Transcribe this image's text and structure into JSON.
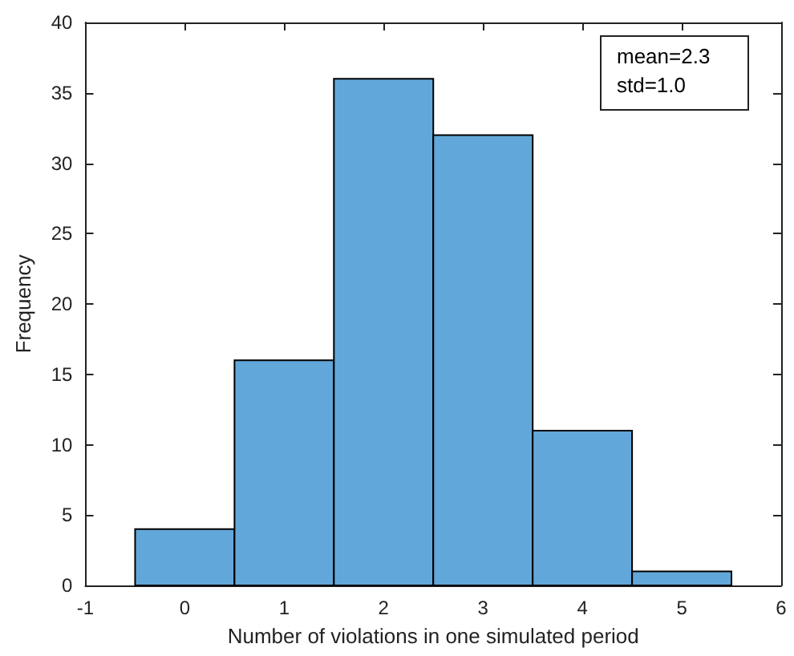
{
  "chart_data": {
    "type": "histogram",
    "bins": [
      -0.5,
      0.5,
      1.5,
      2.5,
      3.5,
      4.5,
      5.5
    ],
    "values": [
      4,
      16,
      36,
      32,
      11,
      1
    ],
    "color": "#62a7d9",
    "xlabel": "Number of violations in one simulated period",
    "ylabel": "Frequency",
    "xlim": [
      -1,
      6
    ],
    "xticks": [
      -1,
      0,
      1,
      2,
      3,
      4,
      5,
      6
    ],
    "ylim": [
      0,
      40
    ],
    "yticks": [
      0,
      5,
      10,
      15,
      20,
      25,
      30,
      35,
      40
    ],
    "annotations": [
      "mean=2.3",
      "std=1.0"
    ],
    "grid": false
  }
}
